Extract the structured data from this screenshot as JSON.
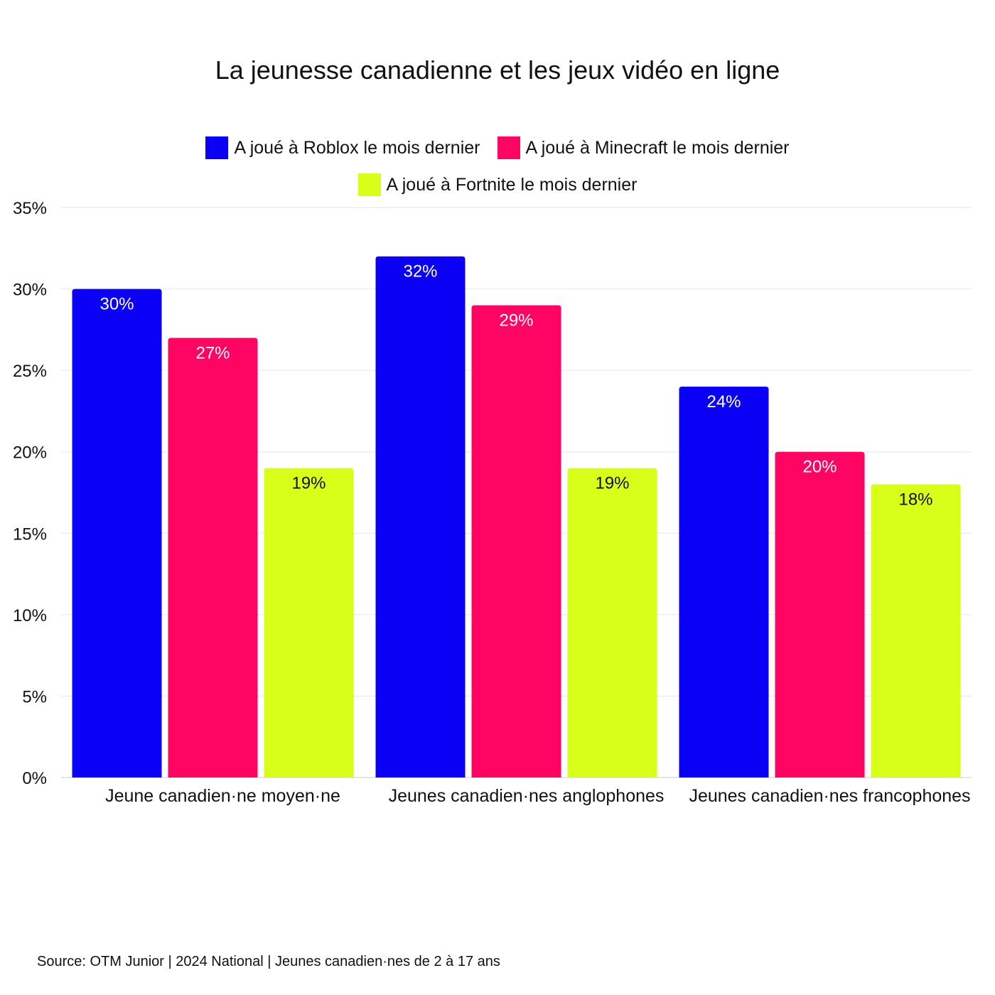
{
  "chart_data": {
    "type": "bar",
    "title": "La jeunesse canadienne et les jeux vidéo en ligne",
    "categories": [
      "Jeune canadien·ne moyen·ne",
      "Jeunes canadien·nes anglophones",
      "Jeunes canadien·nes francophones"
    ],
    "series": [
      {
        "name": "A joué à Roblox le mois dernier",
        "color": "#0a00f5",
        "label_color": "#ffffff",
        "values": [
          30,
          32,
          24
        ],
        "labels": [
          "30%",
          "32%",
          "24%"
        ]
      },
      {
        "name": "A joué à Minecraft le mois dernier",
        "color": "#ff0563",
        "label_color": "#ffffff",
        "values": [
          27,
          29,
          20
        ],
        "labels": [
          "27%",
          "29%",
          "20%"
        ]
      },
      {
        "name": "A joué à Fortnite le mois dernier",
        "color": "#d8ff1a",
        "label_color": "#111111",
        "values": [
          19,
          19,
          18
        ],
        "labels": [
          "19%",
          "19%",
          "18%"
        ]
      }
    ],
    "ylim": [
      0,
      35
    ],
    "yticks": [
      0,
      5,
      10,
      15,
      20,
      25,
      30,
      35
    ],
    "ytick_labels": [
      "0%",
      "5%",
      "10%",
      "15%",
      "20%",
      "25%",
      "30%",
      "35%"
    ],
    "xlabel": "",
    "ylabel": "",
    "grid": true,
    "legend_position": "top-center"
  },
  "source": "Source: OTM Junior | 2024 National | Jeunes canadien·nes de 2 à 17 ans"
}
